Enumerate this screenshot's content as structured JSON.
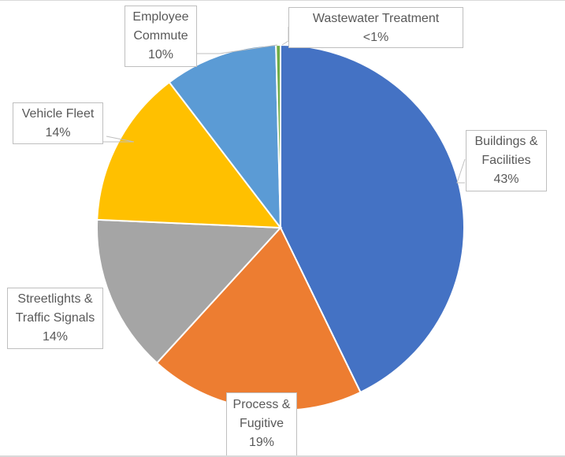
{
  "chart_data": {
    "type": "pie",
    "title": "",
    "start_angle_deg": 0,
    "direction": "clockwise",
    "slices": [
      {
        "label": "Buildings & Facilities",
        "value": 43,
        "display": "43%",
        "color": "#4472C4"
      },
      {
        "label": "Process & Fugitive",
        "value": 19,
        "display": "19%",
        "color": "#ED7D31"
      },
      {
        "label": "Streetlights & Traffic Signals",
        "value": 14,
        "display": "14%",
        "color": "#A5A5A5"
      },
      {
        "label": "Vehicle Fleet",
        "value": 14,
        "display": "14%",
        "color": "#FFC000"
      },
      {
        "label": "Employee Commute",
        "value": 10,
        "display": "10%",
        "color": "#5B9BD5"
      },
      {
        "label": "Wastewater Treatment",
        "value": 0.4,
        "display": "<1%",
        "color": "#70AD47"
      }
    ],
    "legend": "none (callout data labels)"
  },
  "labels": {
    "buildings": {
      "line1": "Buildings &",
      "line2": "Facilities",
      "pct": "43%"
    },
    "process": {
      "line1": "Process &",
      "line2": "Fugitive",
      "pct": "19%"
    },
    "streetlights": {
      "line1": "Streetlights &",
      "line2": "Traffic Signals",
      "pct": "14%"
    },
    "vehicle": {
      "line1": "Vehicle Fleet",
      "pct": "14%"
    },
    "employee": {
      "line1": "Employee",
      "line2": "Commute",
      "pct": "10%"
    },
    "wastewater": {
      "line1": "Wastewater Treatment",
      "pct": "<1%"
    }
  }
}
